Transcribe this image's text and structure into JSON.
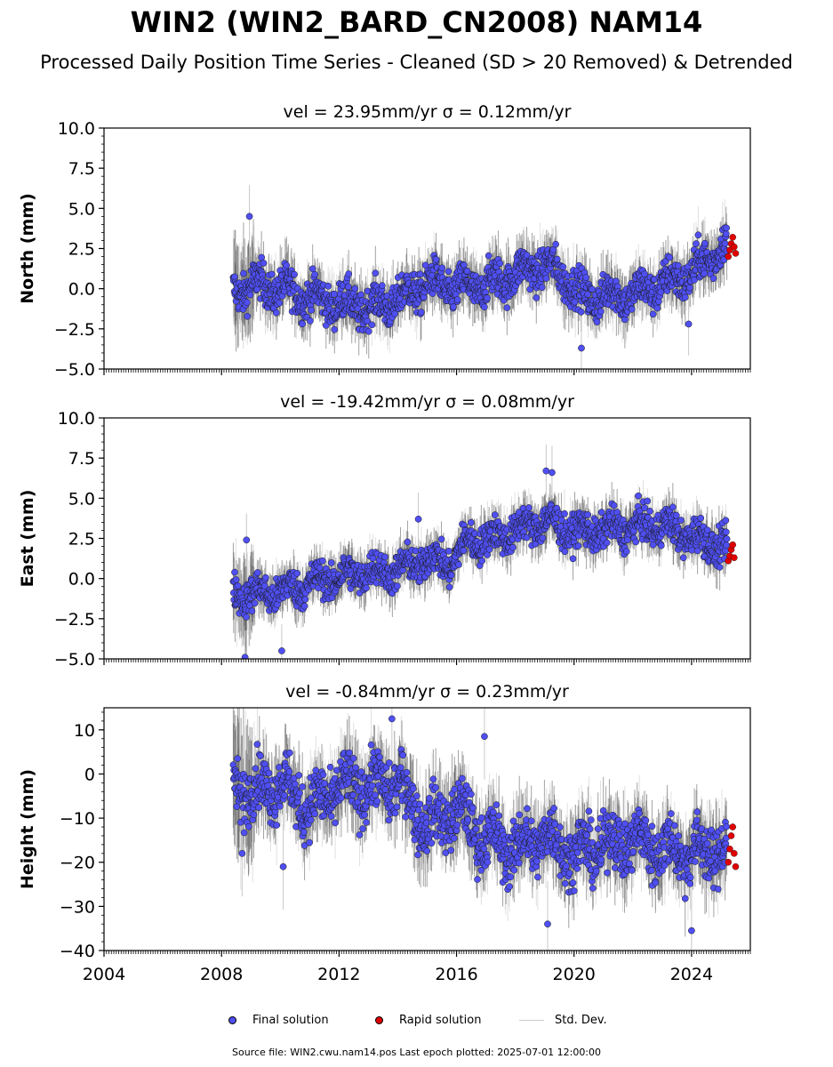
{
  "title": "WIN2 (WIN2_BARD_CN2008) NAM14",
  "subtitle": "Processed Daily Position Time Series - Cleaned (SD > 20 Removed) & Detrended",
  "footer": "Source file: WIN2.cwu.nam14.pos  Last epoch plotted: 2025-07-01 12:00:00",
  "colors": {
    "final": "#4f4ff2",
    "rapid": "#e00000",
    "stddev": "#c8c8c8",
    "stddev_dense": "#555555"
  },
  "legend": {
    "final": "Final solution",
    "rapid": "Rapid solution",
    "stddev": "Std. Dev."
  },
  "chart_data": [
    {
      "type": "scatter",
      "id": "north",
      "title": "vel = 23.95mm/yr   σ = 0.12mm/yr",
      "ylabel": "North (mm)",
      "xlim": [
        2004,
        2026
      ],
      "ylim": [
        -5,
        10
      ],
      "yticks": [
        -5,
        -2.5,
        0,
        2.5,
        5,
        7.5,
        10
      ],
      "ytick_labels": [
        "−5.0",
        "−2.5",
        "0.0",
        "2.5",
        "5.0",
        "7.5",
        "10.0"
      ],
      "xticks": [
        2004,
        2008,
        2012,
        2016,
        2020,
        2024
      ],
      "xtick_labels": [
        "2004",
        "2008",
        "2012",
        "2016",
        "2020",
        "2024"
      ],
      "show_xtick_labels": false,
      "trend_knots": [
        [
          2008.4,
          -0.2
        ],
        [
          2009.0,
          0.3
        ],
        [
          2010.0,
          0.0
        ],
        [
          2011.0,
          -0.5
        ],
        [
          2012.0,
          -0.9
        ],
        [
          2013.0,
          -1.2
        ],
        [
          2014.0,
          -0.7
        ],
        [
          2015.0,
          0.4
        ],
        [
          2016.0,
          0.0
        ],
        [
          2017.0,
          0.2
        ],
        [
          2018.0,
          0.9
        ],
        [
          2019.0,
          1.5
        ],
        [
          2019.8,
          0.6
        ],
        [
          2020.3,
          -0.6
        ],
        [
          2021.0,
          -0.4
        ],
        [
          2022.0,
          -0.4
        ],
        [
          2023.0,
          0.3
        ],
        [
          2024.0,
          0.9
        ],
        [
          2025.0,
          2.6
        ],
        [
          2025.4,
          2.9
        ]
      ],
      "noise": 0.85,
      "std_dev": 1.3,
      "final_range": [
        2008.4,
        2025.2
      ],
      "rapid_x": [
        2025.25,
        2025.3,
        2025.35,
        2025.4,
        2025.45,
        2025.5
      ],
      "rapid_y": [
        2.0,
        2.4,
        2.8,
        3.2,
        2.6,
        2.2
      ],
      "outliers": [
        [
          2008.95,
          4.5
        ],
        [
          2020.25,
          -3.7
        ],
        [
          2023.9,
          -2.2
        ]
      ]
    },
    {
      "type": "scatter",
      "id": "east",
      "title": "vel = -19.42mm/yr   σ = 0.08mm/yr",
      "ylabel": "East (mm)",
      "xlim": [
        2004,
        2026
      ],
      "ylim": [
        -5,
        10
      ],
      "yticks": [
        -5,
        -2.5,
        0,
        2.5,
        5,
        7.5,
        10
      ],
      "ytick_labels": [
        "−5.0",
        "−2.5",
        "0.0",
        "2.5",
        "5.0",
        "7.5",
        "10.0"
      ],
      "xticks": [
        2004,
        2008,
        2012,
        2016,
        2020,
        2024
      ],
      "xtick_labels": [
        "2004",
        "2008",
        "2012",
        "2016",
        "2020",
        "2024"
      ],
      "show_xtick_labels": false,
      "trend_knots": [
        [
          2008.4,
          -0.8
        ],
        [
          2009.0,
          -1.0
        ],
        [
          2010.0,
          -0.8
        ],
        [
          2011.0,
          -0.3
        ],
        [
          2012.0,
          0.1
        ],
        [
          2013.0,
          0.4
        ],
        [
          2014.0,
          0.5
        ],
        [
          2015.0,
          1.2
        ],
        [
          2015.8,
          0.9
        ],
        [
          2016.4,
          2.4
        ],
        [
          2017.0,
          2.4
        ],
        [
          2018.0,
          3.0
        ],
        [
          2019.0,
          3.6
        ],
        [
          2020.0,
          2.9
        ],
        [
          2021.0,
          3.0
        ],
        [
          2022.0,
          3.2
        ],
        [
          2023.0,
          3.3
        ],
        [
          2024.0,
          2.6
        ],
        [
          2025.0,
          2.0
        ],
        [
          2025.4,
          1.6
        ]
      ],
      "noise": 0.75,
      "std_dev": 1.1,
      "final_range": [
        2008.4,
        2025.2
      ],
      "rapid_x": [
        2025.25,
        2025.3,
        2025.35,
        2025.4,
        2025.45
      ],
      "rapid_y": [
        1.1,
        1.4,
        1.8,
        2.1,
        1.3
      ],
      "outliers": [
        [
          2008.85,
          2.4
        ],
        [
          2008.8,
          -4.9
        ],
        [
          2010.05,
          -4.5
        ],
        [
          2014.7,
          3.7
        ],
        [
          2019.05,
          6.7
        ],
        [
          2019.25,
          6.6
        ]
      ]
    },
    {
      "type": "scatter",
      "id": "height",
      "title": "vel = -0.84mm/yr   σ = 0.23mm/yr",
      "ylabel": "Height (mm)",
      "xlim": [
        2004,
        2026
      ],
      "ylim": [
        -40,
        15
      ],
      "yticks": [
        -40,
        -30,
        -20,
        -10,
        0,
        10
      ],
      "ytick_labels": [
        "−40",
        "−30",
        "−20",
        "−10",
        "0",
        "10"
      ],
      "xticks": [
        2004,
        2008,
        2012,
        2016,
        2020,
        2024
      ],
      "xtick_labels": [
        "2004",
        "2008",
        "2012",
        "2016",
        "2020",
        "2024"
      ],
      "show_xtick_labels": true,
      "trend_knots": [
        [
          2008.4,
          -2
        ],
        [
          2009.0,
          -4
        ],
        [
          2010.0,
          -2
        ],
        [
          2011.0,
          -8
        ],
        [
          2012.0,
          -3
        ],
        [
          2013.0,
          -3
        ],
        [
          2014.0,
          -2
        ],
        [
          2015.0,
          -12
        ],
        [
          2016.0,
          -8
        ],
        [
          2017.0,
          -15
        ],
        [
          2018.0,
          -17
        ],
        [
          2019.0,
          -14
        ],
        [
          2020.0,
          -18
        ],
        [
          2021.0,
          -16
        ],
        [
          2022.0,
          -15
        ],
        [
          2023.0,
          -17
        ],
        [
          2024.0,
          -18
        ],
        [
          2025.0,
          -17
        ],
        [
          2025.4,
          -18
        ]
      ],
      "noise": 4.5,
      "std_dev": 6.5,
      "final_range": [
        2008.4,
        2025.2
      ],
      "rapid_x": [
        2025.25,
        2025.3,
        2025.35,
        2025.4,
        2025.45,
        2025.5
      ],
      "rapid_y": [
        -20,
        -17,
        -14,
        -12,
        -18,
        -21
      ],
      "outliers": [
        [
          2008.7,
          -18
        ],
        [
          2010.1,
          -21
        ],
        [
          2013.8,
          12.5
        ],
        [
          2016.95,
          8.5
        ],
        [
          2019.1,
          -34
        ],
        [
          2024.0,
          -35.5
        ]
      ]
    }
  ]
}
